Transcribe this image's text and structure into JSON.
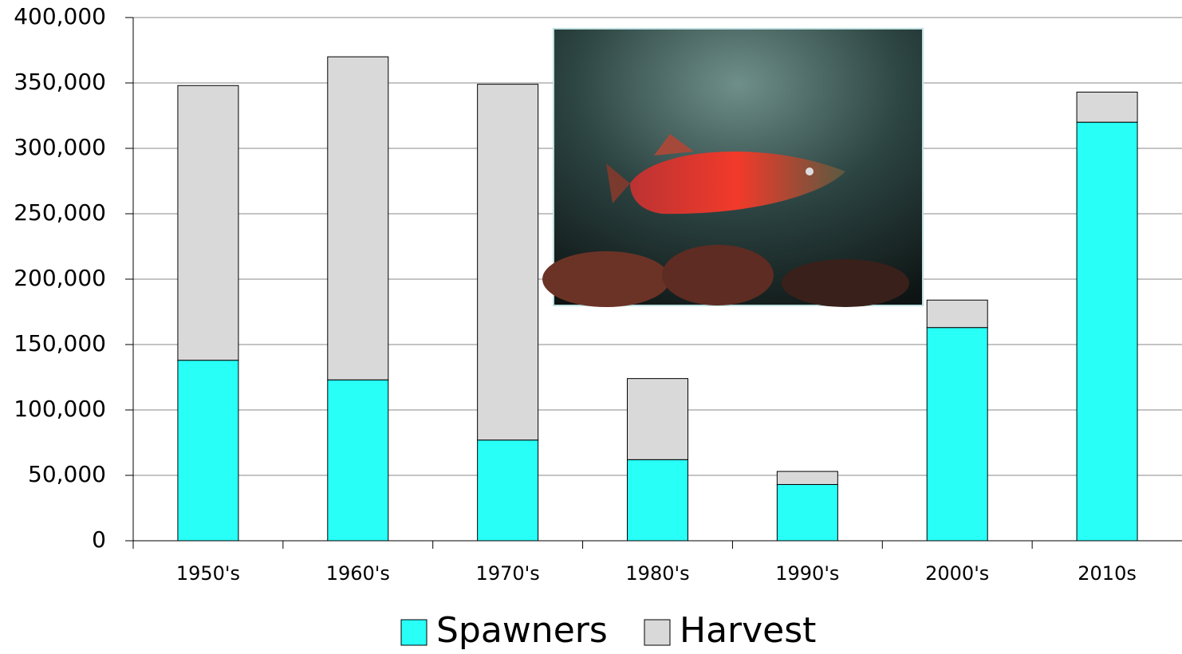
{
  "chart_data": {
    "type": "stacked-bar",
    "categories": [
      "1950's",
      "1960's",
      "1970's",
      "1980's",
      "1990's",
      "2000's",
      "2010s"
    ],
    "series": [
      {
        "name": "Spawners",
        "color": "#27fff7",
        "values": [
          138000,
          123000,
          77000,
          62000,
          43000,
          163000,
          320000
        ]
      },
      {
        "name": "Harvest",
        "color": "#d9d9d9",
        "values": [
          210000,
          247000,
          272000,
          62000,
          10000,
          21000,
          23000
        ]
      }
    ],
    "ylim": [
      0,
      400000
    ],
    "yticks": [
      0,
      {
        "value": 50000,
        "label": "50,000"
      },
      {
        "value": 100000,
        "label": "100,000"
      },
      {
        "value": 150000,
        "label": "150,000"
      },
      {
        "value": 200000,
        "label": "200,000"
      },
      {
        "value": 250000,
        "label": "250,000"
      },
      {
        "value": 300000,
        "label": "300,000"
      },
      {
        "value": 350000,
        "label": "350,000"
      },
      {
        "value": 400000,
        "label": "400,000"
      }
    ],
    "grid": true,
    "legend": "bottom"
  }
}
